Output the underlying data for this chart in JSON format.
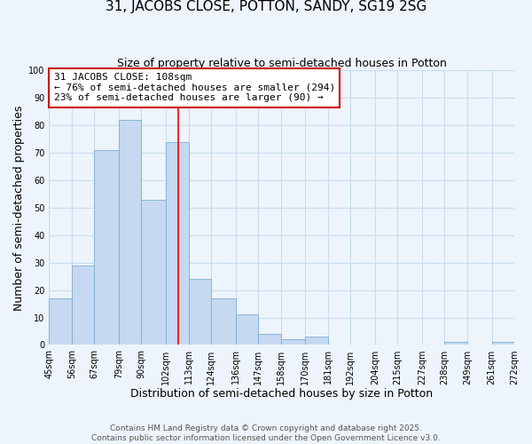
{
  "title": "31, JACOBS CLOSE, POTTON, SANDY, SG19 2SG",
  "subtitle": "Size of property relative to semi-detached houses in Potton",
  "xlabel": "Distribution of semi-detached houses by size in Potton",
  "ylabel": "Number of semi-detached properties",
  "bin_edges": [
    45,
    56,
    67,
    79,
    90,
    102,
    113,
    124,
    136,
    147,
    158,
    170,
    181,
    192,
    204,
    215,
    227,
    238,
    249,
    261,
    272
  ],
  "bar_heights": [
    17,
    29,
    71,
    82,
    53,
    74,
    24,
    17,
    11,
    4,
    2,
    3,
    0,
    0,
    0,
    0,
    0,
    1,
    0,
    1
  ],
  "bar_color": "#c5d9f0",
  "bar_edge_color": "#7bafd4",
  "grid_color": "#c8ddf0",
  "background_color": "#eef4fb",
  "red_line_x": 108,
  "annotation_title": "31 JACOBS CLOSE: 108sqm",
  "annotation_line1": "← 76% of semi-detached houses are smaller (294)",
  "annotation_line2": "23% of semi-detached houses are larger (90) →",
  "annotation_box_color": "#ffffff",
  "annotation_border_color": "#cc0000",
  "ylim": [
    0,
    100
  ],
  "yticks": [
    0,
    10,
    20,
    30,
    40,
    50,
    60,
    70,
    80,
    90,
    100
  ],
  "tick_labels": [
    "45sqm",
    "56sqm",
    "67sqm",
    "79sqm",
    "90sqm",
    "102sqm",
    "113sqm",
    "124sqm",
    "136sqm",
    "147sqm",
    "158sqm",
    "170sqm",
    "181sqm",
    "192sqm",
    "204sqm",
    "215sqm",
    "227sqm",
    "238sqm",
    "249sqm",
    "261sqm",
    "272sqm"
  ],
  "footer1": "Contains HM Land Registry data © Crown copyright and database right 2025.",
  "footer2": "Contains public sector information licensed under the Open Government Licence v3.0.",
  "title_fontsize": 11,
  "subtitle_fontsize": 9,
  "axis_label_fontsize": 9,
  "tick_fontsize": 7,
  "annotation_fontsize": 8,
  "footer_fontsize": 6.5
}
